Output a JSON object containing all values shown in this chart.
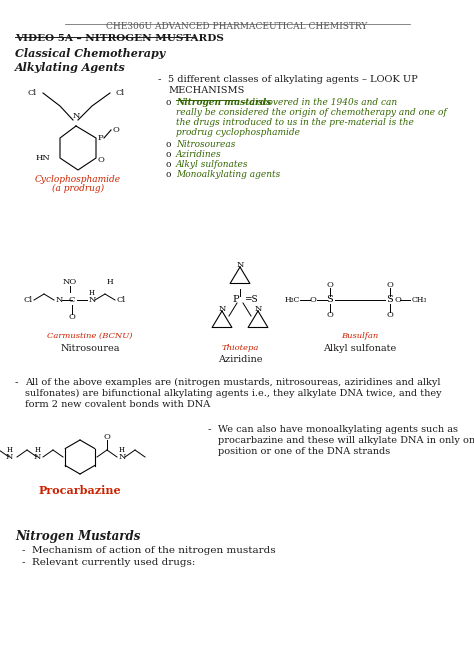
{
  "title": "CHE306U ADVANCED PHARMACEUTICAL CHEMISTRY",
  "subtitle": "VIDEO 5A – NITROGEN MUSTARDS",
  "section1": "Classical Chemotherapy",
  "section2": "Alkylating Agents",
  "bullet1a": "5 different classes of alkylating agents – LOOK UP",
  "bullet1b": "MECHANISMS",
  "sub_bullet1_label": "Nitrogen mustards",
  "sub_bullet1_rest_lines": [
    " – discovered in the 1940s and can",
    "really be considered the origin of chemotherapy and one of",
    "the drugs introduced to us in the pre-material is the",
    "prodrug cyclophosphamide"
  ],
  "sub_bullets": [
    "Nitrosoureas",
    "Aziridines",
    "Alkyl sulfonates",
    "Monoalkylating agents"
  ],
  "cyclophosphamide_label1": "Cyclophosphamide",
  "cyclophosphamide_label2": "(a prodrug)",
  "carmustine_label": "Carmustine (BCNU)",
  "thiotepa_label": "Thiotepa",
  "busulfan_label": "Busulfan",
  "nitrosourea_label": "Nitrosourea",
  "aziridine_label": "Aziridine",
  "alkyl_sulfonate_label": "Alkyl sulfonate",
  "bif_lines": [
    "All of the above examples are (nitrogen mustards, nitrosoureas, aziridines and alkyl",
    "sulfonates) are bifunctional alkylating agents i.e., they alkylate DNA twice, and they",
    "form 2 new covalent bonds with DNA"
  ],
  "proc_lines": [
    "We can also have monoalkylating agents such as",
    "procarbazine and these will alkylate DNA in only one",
    "position or one of the DNA strands"
  ],
  "procarbazine_label": "Procarbazine",
  "section3": "Nitrogen Mustards",
  "nm_bullet1": "Mechanism of action of the nitrogen mustards",
  "nm_bullet2": "Relevant currently used drugs:",
  "bg_color": "#ffffff",
  "text_color": "#1a1a1a",
  "red_color": "#cc2200",
  "green_color": "#336600",
  "title_color": "#555555"
}
